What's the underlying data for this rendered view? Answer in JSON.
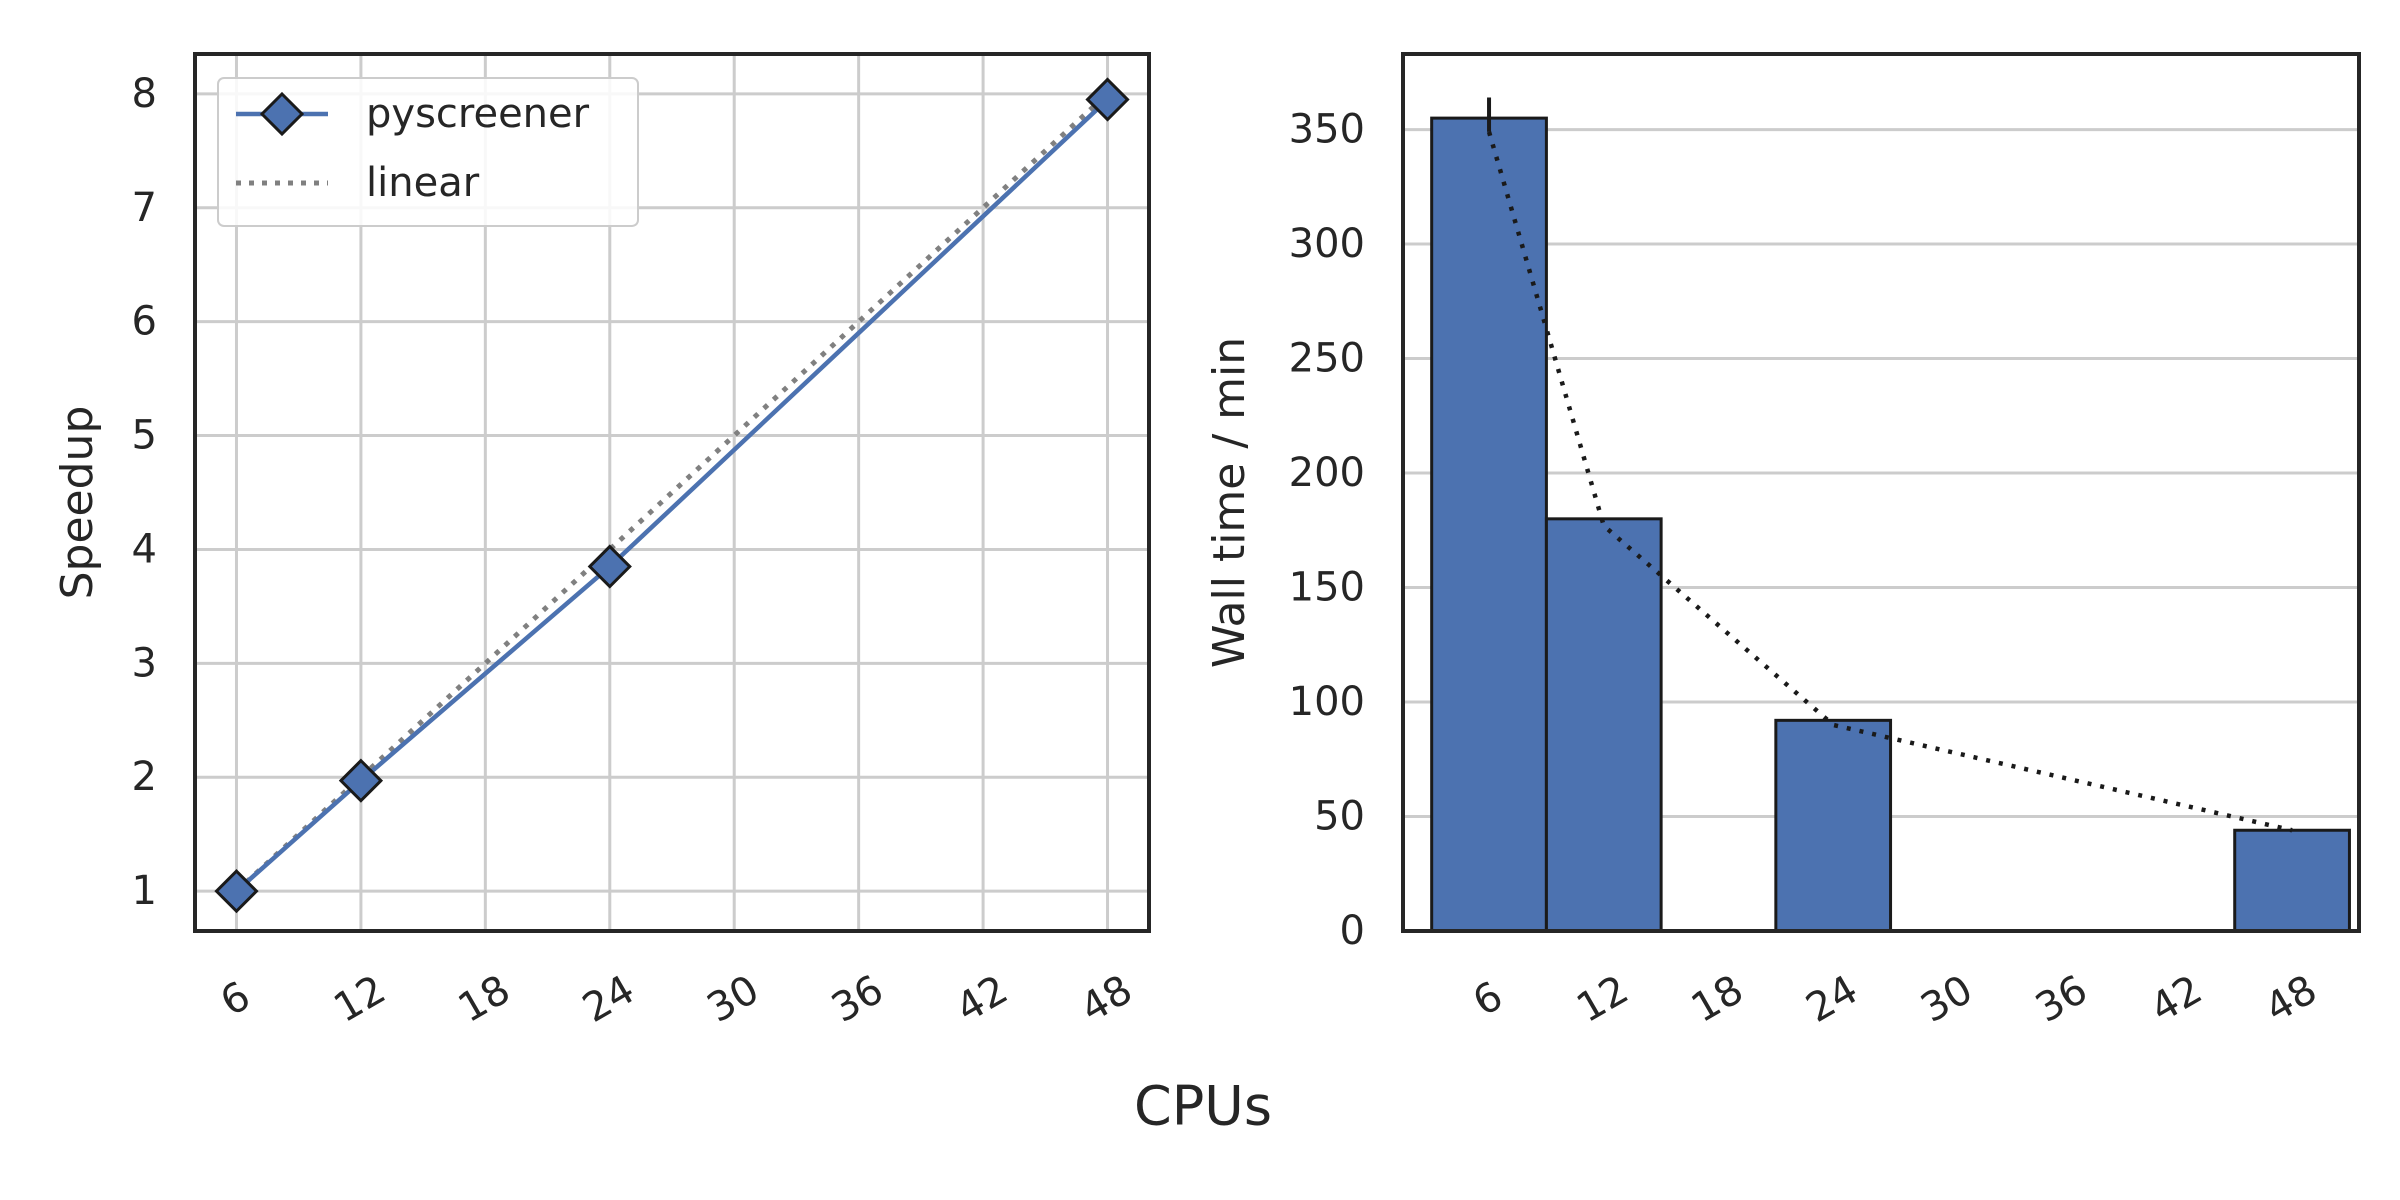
{
  "figure": {
    "xlabel": "CPUs"
  },
  "colors": {
    "primary": "#4c72b0",
    "linear": "#808080",
    "edge": "#1a1a1a",
    "grid": "#cccccc",
    "spine": "#262626"
  },
  "chart_data": [
    {
      "type": "line",
      "x": [
        6,
        12,
        24,
        48
      ],
      "xticks": [
        "6",
        "12",
        "18",
        "24",
        "30",
        "36",
        "42",
        "48"
      ],
      "yticks": [
        "1",
        "2",
        "3",
        "4",
        "5",
        "6",
        "7",
        "8"
      ],
      "xlim": [
        4,
        50
      ],
      "ylim": [
        0.65,
        8.35
      ],
      "ylabel": "Speedup",
      "grid": true,
      "legend_position": "top-left",
      "series": [
        {
          "name": "pyscreener",
          "values": [
            1.0,
            1.97,
            3.85,
            7.95
          ],
          "marker": "diamond",
          "style": "solid"
        },
        {
          "name": "linear",
          "values": [
            1,
            2,
            4,
            8
          ],
          "style": "dotted"
        }
      ]
    },
    {
      "type": "bar",
      "categories": [
        6,
        12,
        24,
        48
      ],
      "values": [
        355,
        180,
        92,
        44
      ],
      "error_top": [
        364,
        null,
        null,
        null
      ],
      "trend_line": [
        349,
        177,
        90,
        44
      ],
      "xticks": [
        "6",
        "12",
        "18",
        "24",
        "30",
        "36",
        "42",
        "48"
      ],
      "yticks": [
        "0",
        "50",
        "100",
        "150",
        "200",
        "250",
        "300",
        "350"
      ],
      "xlim": [
        1.5,
        51.5
      ],
      "ylim": [
        0,
        383
      ],
      "ylabel": "Wall time / min",
      "grid": "y"
    }
  ]
}
